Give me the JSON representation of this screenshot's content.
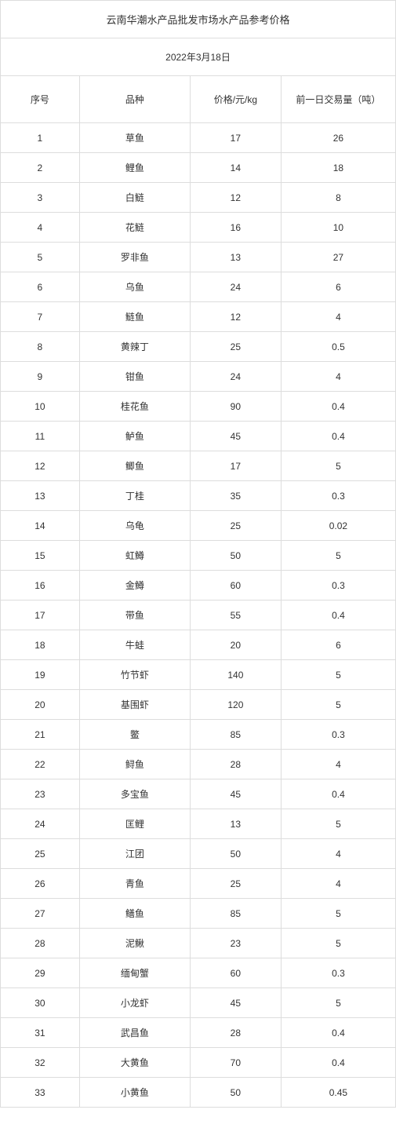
{
  "title": "云南华潮水产品批发市场水产品参考价格",
  "date": "2022年3月18日",
  "columns": [
    "序号",
    "品种",
    "价格/元/kg",
    "前一日交易量（吨）"
  ],
  "rows": [
    [
      "1",
      "草鱼",
      "17",
      "26"
    ],
    [
      "2",
      "鲤鱼",
      "14",
      "18"
    ],
    [
      "3",
      "白鲢",
      "12",
      "8"
    ],
    [
      "4",
      "花鲢",
      "16",
      "10"
    ],
    [
      "5",
      "罗非鱼",
      "13",
      "27"
    ],
    [
      "6",
      "乌鱼",
      "24",
      "6"
    ],
    [
      "7",
      "鲢鱼",
      "12",
      "4"
    ],
    [
      "8",
      "黄辣丁",
      "25",
      "0.5"
    ],
    [
      "9",
      "钳鱼",
      "24",
      "4"
    ],
    [
      "10",
      "桂花鱼",
      "90",
      "0.4"
    ],
    [
      "11",
      "鲈鱼",
      "45",
      "0.4"
    ],
    [
      "12",
      "鲫鱼",
      "17",
      "5"
    ],
    [
      "13",
      "丁桂",
      "35",
      "0.3"
    ],
    [
      "14",
      "乌龟",
      "25",
      "0.02"
    ],
    [
      "15",
      "虹鳟",
      "50",
      "5"
    ],
    [
      "16",
      "金鳟",
      "60",
      "0.3"
    ],
    [
      "17",
      "带鱼",
      "55",
      "0.4"
    ],
    [
      "18",
      "牛蛙",
      "20",
      "6"
    ],
    [
      "19",
      "竹节虾",
      "140",
      "5"
    ],
    [
      "20",
      "基围虾",
      "120",
      "5"
    ],
    [
      "21",
      "鳖",
      "85",
      "0.3"
    ],
    [
      "22",
      "鲟鱼",
      "28",
      "4"
    ],
    [
      "23",
      "多宝鱼",
      "45",
      "0.4"
    ],
    [
      "24",
      "匡鲤",
      "13",
      "5"
    ],
    [
      "25",
      "江团",
      "50",
      "4"
    ],
    [
      "26",
      "青鱼",
      "25",
      "4"
    ],
    [
      "27",
      "鳝鱼",
      "85",
      "5"
    ],
    [
      "28",
      "泥鳅",
      "23",
      "5"
    ],
    [
      "29",
      "缅甸蟹",
      "60",
      "0.3"
    ],
    [
      "30",
      "小龙虾",
      "45",
      "5"
    ],
    [
      "31",
      "武昌鱼",
      "28",
      "0.4"
    ],
    [
      "32",
      "大黄鱼",
      "70",
      "0.4"
    ],
    [
      "33",
      "小黄鱼",
      "50",
      "0.45"
    ]
  ],
  "style": {
    "border_color": "#dddddd",
    "text_color": "#333333",
    "background_color": "#ffffff",
    "font_family": "Microsoft YaHei",
    "title_fontsize": 13,
    "body_fontsize": 12,
    "title_row_height": 48,
    "date_row_height": 48,
    "header_row_height": 60,
    "data_row_height": 38,
    "column_widths_pct": [
      20,
      28,
      23,
      29
    ]
  }
}
